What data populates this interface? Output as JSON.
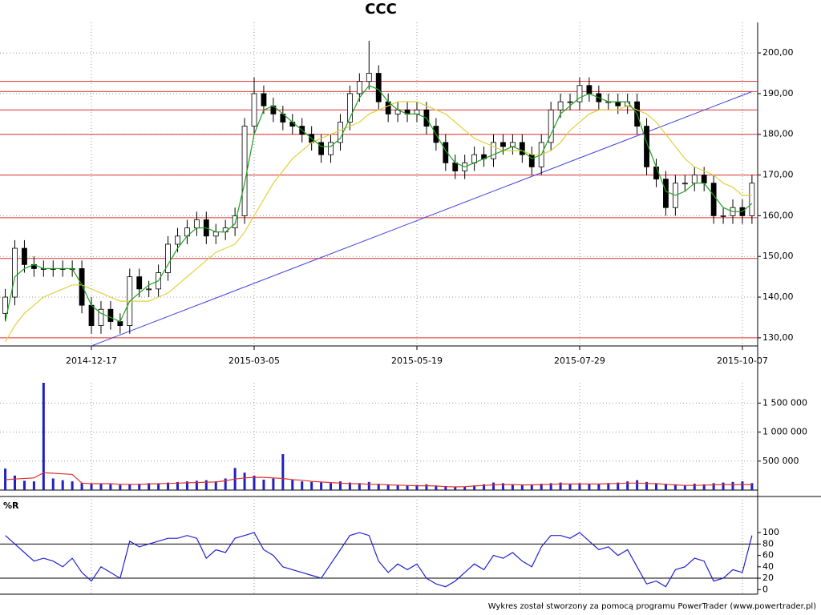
{
  "chart_data": {
    "type": "candlestick",
    "title": "CCC",
    "grid": true,
    "categories": [
      null,
      null,
      null,
      null,
      null,
      null,
      null,
      null,
      null,
      "2014-12-17",
      null,
      null,
      null,
      null,
      null,
      null,
      null,
      null,
      null,
      null,
      null,
      null,
      null,
      null,
      null,
      null,
      "2015-03-05",
      null,
      null,
      null,
      null,
      null,
      null,
      null,
      null,
      null,
      null,
      null,
      null,
      null,
      null,
      null,
      null,
      "2015-05-19",
      null,
      null,
      null,
      null,
      null,
      null,
      null,
      null,
      null,
      null,
      null,
      null,
      null,
      null,
      null,
      null,
      "2015-07-29",
      null,
      null,
      null,
      null,
      null,
      null,
      null,
      null,
      null,
      null,
      null,
      null,
      null,
      null,
      null,
      null,
      "2015-10-07",
      null
    ],
    "open": [
      136,
      140,
      152,
      148,
      147,
      147,
      147,
      147,
      147,
      138,
      133,
      137,
      134,
      133,
      145,
      142,
      142,
      146,
      153,
      155,
      157,
      159,
      155,
      156,
      157,
      160,
      182,
      190,
      187,
      185,
      183,
      182,
      180,
      178,
      175,
      178,
      183,
      190,
      193,
      195,
      188,
      185,
      186,
      185,
      186,
      182,
      178,
      173,
      171,
      173,
      175,
      174,
      178,
      177,
      178,
      175,
      172,
      178,
      186,
      188,
      188,
      192,
      190,
      188,
      188,
      187,
      188,
      182,
      172,
      169,
      162,
      168,
      168,
      170,
      168,
      160,
      160,
      162,
      160
    ],
    "high": [
      142,
      154,
      154,
      150,
      149,
      149,
      149,
      149,
      149,
      140,
      139,
      139,
      136,
      147,
      147,
      144,
      148,
      155,
      157,
      159,
      161,
      161,
      158,
      159,
      162,
      184,
      194,
      192,
      189,
      187,
      185,
      184,
      182,
      180,
      180,
      185,
      192,
      195,
      203,
      197,
      190,
      188,
      188,
      188,
      188,
      184,
      180,
      175,
      175,
      177,
      177,
      180,
      180,
      180,
      180,
      177,
      180,
      188,
      190,
      190,
      194,
      194,
      192,
      190,
      190,
      190,
      190,
      184,
      174,
      171,
      170,
      170,
      172,
      172,
      170,
      162,
      164,
      164,
      170
    ],
    "low": [
      134,
      138,
      146,
      145,
      145,
      145,
      145,
      145,
      136,
      131,
      131,
      132,
      131,
      131,
      140,
      140,
      140,
      144,
      151,
      153,
      155,
      153,
      153,
      154,
      155,
      158,
      180,
      185,
      183,
      181,
      180,
      178,
      176,
      173,
      173,
      176,
      181,
      188,
      191,
      186,
      183,
      183,
      183,
      183,
      180,
      176,
      171,
      169,
      169,
      171,
      172,
      172,
      175,
      175,
      173,
      170,
      170,
      176,
      184,
      186,
      186,
      188,
      186,
      186,
      185,
      185,
      180,
      170,
      167,
      160,
      160,
      166,
      166,
      166,
      158,
      158,
      158,
      158,
      158
    ],
    "close": [
      140,
      152,
      148,
      147,
      147,
      147,
      147,
      147,
      138,
      133,
      137,
      134,
      133,
      145,
      142,
      142,
      146,
      153,
      155,
      157,
      159,
      155,
      156,
      157,
      160,
      182,
      190,
      187,
      185,
      183,
      182,
      180,
      178,
      175,
      178,
      183,
      190,
      193,
      195,
      188,
      185,
      186,
      185,
      186,
      182,
      178,
      173,
      171,
      173,
      175,
      174,
      178,
      177,
      178,
      175,
      172,
      178,
      186,
      188,
      188,
      192,
      190,
      188,
      188,
      187,
      188,
      182,
      172,
      169,
      162,
      168,
      168,
      170,
      168,
      160,
      160,
      162,
      160,
      168
    ],
    "ma": [
      {
        "color": "#e0d040",
        "values": [
          129,
          133,
          136,
          138,
          140,
          141,
          142,
          143,
          143,
          142,
          141,
          140,
          139,
          139,
          139,
          139,
          140,
          141,
          143,
          145,
          147,
          149,
          151,
          152,
          153,
          156,
          160,
          164,
          168,
          171,
          174,
          176,
          178,
          179,
          180,
          181,
          182,
          183,
          185,
          186,
          187,
          188,
          188,
          188,
          187,
          186,
          185,
          183,
          181,
          179,
          178,
          177,
          176,
          176,
          176,
          175,
          175,
          176,
          178,
          181,
          183,
          185,
          186,
          186,
          186,
          187,
          186,
          185,
          183,
          180,
          177,
          174,
          172,
          171,
          170,
          168,
          167,
          165,
          165
        ]
      },
      {
        "color": "#20a020",
        "values": [
          134,
          145,
          147,
          148,
          147,
          147,
          147,
          147,
          143,
          138,
          136,
          135,
          134,
          139,
          141,
          143,
          144,
          148,
          152,
          155,
          157,
          157,
          156,
          156,
          158,
          168,
          180,
          186,
          187,
          185,
          183,
          181,
          179,
          177,
          177,
          179,
          184,
          189,
          192,
          191,
          188,
          186,
          185,
          185,
          184,
          180,
          176,
          173,
          172,
          173,
          174,
          175,
          176,
          177,
          176,
          174,
          175,
          180,
          185,
          187,
          189,
          190,
          189,
          188,
          188,
          188,
          185,
          178,
          172,
          166,
          165,
          166,
          168,
          168,
          165,
          162,
          161,
          161,
          163
        ]
      }
    ],
    "levels": {
      "color": "#e03030",
      "values": [
        193,
        190.5,
        186,
        180,
        170,
        159.5,
        149.5,
        130
      ]
    },
    "trendline": {
      "color": "#4040e0",
      "x": [
        9,
        78
      ],
      "y": [
        128,
        190.5
      ]
    },
    "ylim": [
      128,
      207.5
    ],
    "yticks": [
      {
        "value": 130,
        "label": "130,00"
      },
      {
        "value": 140,
        "label": "140,00"
      },
      {
        "value": 150,
        "label": "150,00"
      },
      {
        "value": 160,
        "label": "160,00"
      },
      {
        "value": 170,
        "label": "170,00"
      },
      {
        "value": 180,
        "label": "180,00"
      },
      {
        "value": 190,
        "label": "190,00"
      },
      {
        "value": 200,
        "label": "200,00"
      }
    ],
    "volume": {
      "type": "bar",
      "color": "#2020c0",
      "values": [
        370000,
        250000,
        160000,
        150000,
        1850000,
        200000,
        170000,
        150000,
        120000,
        110000,
        110000,
        100000,
        90000,
        100000,
        110000,
        120000,
        110000,
        130000,
        140000,
        150000,
        160000,
        170000,
        150000,
        200000,
        380000,
        300000,
        250000,
        180000,
        200000,
        620000,
        180000,
        150000,
        140000,
        130000,
        120000,
        150000,
        130000,
        120000,
        140000,
        110000,
        100000,
        90000,
        80000,
        90000,
        100000,
        80000,
        70000,
        60000,
        60000,
        80000,
        100000,
        130000,
        120000,
        100000,
        90000,
        100000,
        110000,
        120000,
        130000,
        110000,
        120000,
        100000,
        110000,
        120000,
        130000,
        150000,
        170000,
        140000,
        120000,
        110000,
        100000,
        90000,
        110000,
        100000,
        120000,
        130000,
        140000,
        150000,
        120000
      ],
      "ma": {
        "color": "#e03030",
        "values": [
          180000,
          190000,
          200000,
          210000,
          300000,
          290000,
          280000,
          270000,
          120000,
          110000,
          110000,
          110000,
          100000,
          100000,
          100000,
          105000,
          110000,
          115000,
          120000,
          125000,
          130000,
          135000,
          140000,
          160000,
          190000,
          210000,
          220000,
          220000,
          210000,
          200000,
          180000,
          170000,
          150000,
          140000,
          130000,
          120000,
          110000,
          110000,
          100000,
          100000,
          90000,
          85000,
          80000,
          75000,
          75000,
          70000,
          60000,
          55000,
          60000,
          70000,
          80000,
          90000,
          95000,
          95000,
          90000,
          90000,
          95000,
          100000,
          105000,
          105000,
          105000,
          105000,
          105000,
          110000,
          115000,
          120000,
          120000,
          115000,
          110000,
          100000,
          90000,
          80000,
          80000,
          85000,
          90000,
          95000,
          95000,
          95000,
          95000
        ]
      },
      "ylim": [
        0,
        1850000
      ],
      "yticks": [
        {
          "value": 500000,
          "label": "500 000"
        },
        {
          "value": 1000000,
          "label": "1 000 000"
        },
        {
          "value": 1500000,
          "label": "1 500 000"
        }
      ]
    },
    "williams": {
      "type": "line",
      "title": "%R",
      "color": "#2020d0",
      "values": [
        95,
        80,
        65,
        50,
        55,
        50,
        40,
        55,
        30,
        15,
        40,
        30,
        20,
        85,
        75,
        80,
        85,
        90,
        90,
        95,
        90,
        55,
        70,
        65,
        90,
        95,
        100,
        70,
        60,
        40,
        35,
        30,
        25,
        20,
        45,
        70,
        95,
        100,
        95,
        50,
        30,
        45,
        35,
        45,
        20,
        10,
        5,
        15,
        30,
        45,
        35,
        60,
        55,
        65,
        50,
        40,
        75,
        95,
        95,
        90,
        100,
        85,
        70,
        75,
        60,
        70,
        40,
        10,
        15,
        5,
        35,
        40,
        55,
        50,
        15,
        20,
        35,
        30,
        95
      ],
      "levels": [
        20,
        80
      ],
      "ylim": [
        -8,
        124
      ],
      "yticks": [
        0,
        20,
        40,
        60,
        80,
        100
      ]
    }
  },
  "footer": "Wykres został stworzony za pomocą programu PowerTrader (www.powertrader.pl)"
}
